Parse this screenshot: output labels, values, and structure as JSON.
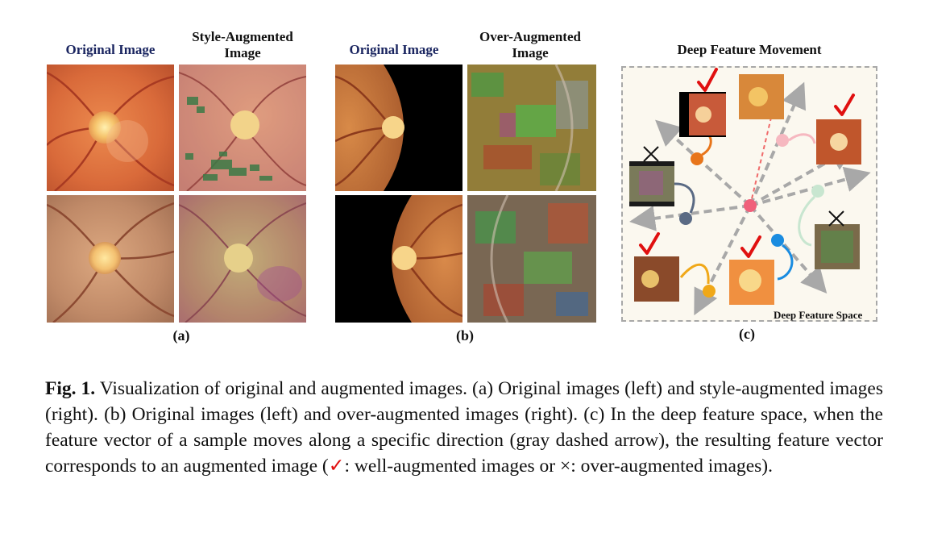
{
  "headers": {
    "a_left": "Original Image",
    "a_right": "Style-Augmented Image",
    "b_left": "Original Image",
    "b_right": "Over-Augmented Image",
    "c": "Deep Feature Movement"
  },
  "sublabels": {
    "a": "(a)",
    "b": "(b)",
    "c": "(c)"
  },
  "feature_space_label": "Deep Feature Space",
  "caption": {
    "fig_label": "Fig. 1.",
    "part1": " Visualization of original and augmented images. (a) Original images (left) and style-augmented images (right). (b) Original images (left) and over-augmented images (right). (c) In the deep feature space, when the feature vector of a sample moves along a specific direction (gray dashed arrow), the resulting feature vector corresponds to an augmented image (",
    "check_symbol": "✓",
    "part2": ": well-augmented images or ×: over-augmented images)."
  },
  "colors": {
    "accent_red": "#e01010",
    "header_blue": "#1a2560",
    "arrow_gray": "#a8a8a8"
  }
}
